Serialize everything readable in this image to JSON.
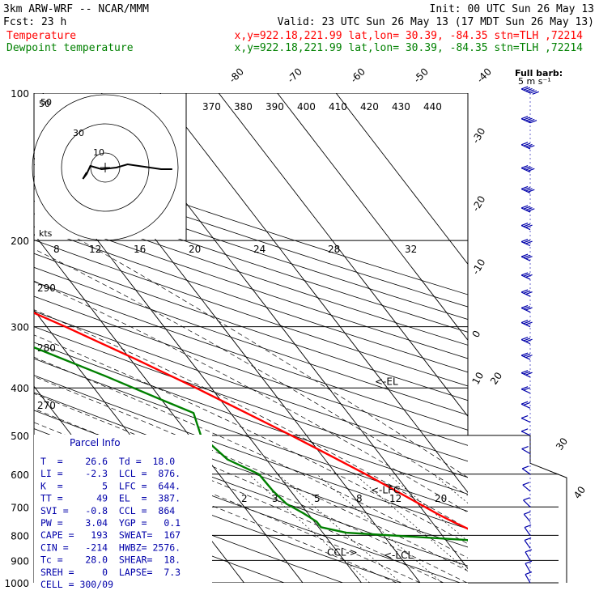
{
  "header": {
    "title": "3km ARW-WRF -- NCAR/MMM",
    "init": "Init: 00 UTC Sun 26 May 13",
    "fcst": "Fcst:    23 h",
    "valid": "Valid: 23 UTC Sun 26 May 13 (17 MDT Sun 26 May 13)",
    "temp_label": "Temperature",
    "dew_label": "Dewpoint temperature",
    "location": "x,y=922.18,221.99   lat,lon= 30.39, -84.35   stn=TLH ,72214"
  },
  "barb_key": {
    "title": "Full barb:",
    "value": "5 m s⁻¹"
  },
  "colors": {
    "temperature": "#ff0000",
    "dewpoint": "#008000",
    "isotherm": "#000000",
    "parcel_text": "#0000aa",
    "barbs": "#0000aa",
    "hodograph": "#000000"
  },
  "chart_data": {
    "type": "line",
    "diagram": "skew-T log-p",
    "y_axis": {
      "unit": "hPa",
      "scale": "log",
      "range": [
        1000,
        100
      ],
      "ticks": [
        100,
        200,
        300,
        400,
        500,
        600,
        700,
        800,
        900,
        1000
      ]
    },
    "isotherm_labels": [
      "-80",
      "-70",
      "-60",
      "-50",
      "-40",
      "-30",
      "-20",
      "-10",
      "0",
      "10",
      "20",
      "30",
      "40"
    ],
    "theta_labels": [
      "370",
      "380",
      "390",
      "400",
      "410",
      "420",
      "430",
      "440"
    ],
    "theta_left_labels": [
      "290",
      "280",
      "270"
    ],
    "mixing_ratio_labels": [
      "2",
      "3",
      "5",
      "8",
      "12",
      "20"
    ],
    "hodograph": {
      "unit_label": "kts",
      "ring_labels": [
        "10",
        "30",
        "50"
      ],
      "speed_labels": [
        "8",
        "12",
        "16",
        "20",
        "24",
        "28",
        "32"
      ],
      "trace_u_v": [
        [
          -5,
          -2
        ],
        [
          -6,
          2
        ],
        [
          -5,
          -1
        ],
        [
          -4,
          -6
        ],
        [
          -1,
          -4
        ],
        [
          3,
          -5
        ],
        [
          6,
          -7
        ],
        [
          9,
          -6
        ],
        [
          12,
          -5
        ],
        [
          15,
          -4
        ],
        [
          18,
          -4
        ]
      ]
    },
    "annotations": [
      "<-EL",
      "<-LFC",
      "<-LCL",
      "CCL->"
    ],
    "series": [
      {
        "name": "Temperature",
        "color": "#ff0000",
        "points": [
          [
            1000,
            26.6
          ],
          [
            975,
            24.5
          ],
          [
            950,
            22.3
          ],
          [
            925,
            20.5
          ],
          [
            900,
            19.2
          ],
          [
            875,
            18.6
          ],
          [
            850,
            17.0
          ],
          [
            825,
            16.4
          ],
          [
            800,
            16.2
          ],
          [
            775,
            15.2
          ],
          [
            750,
            13.6
          ],
          [
            725,
            12.1
          ],
          [
            700,
            10.8
          ],
          [
            650,
            8.0
          ],
          [
            600,
            5.0
          ],
          [
            550,
            1.4
          ],
          [
            500,
            -2.6
          ],
          [
            450,
            -7.3
          ],
          [
            400,
            -12.6
          ],
          [
            350,
            -19.0
          ],
          [
            300,
            -26.8
          ],
          [
            250,
            -36.7
          ],
          [
            200,
            -49.0
          ],
          [
            175,
            -55.8
          ],
          [
            150,
            -62.6
          ],
          [
            130,
            -63.8
          ],
          [
            115,
            -65.4
          ],
          [
            100,
            -67.0
          ]
        ]
      },
      {
        "name": "Dewpoint temperature",
        "color": "#008000",
        "points": [
          [
            1000,
            18.0
          ],
          [
            950,
            18.5
          ],
          [
            900,
            16.8
          ],
          [
            850,
            15.9
          ],
          [
            820,
            15.4
          ],
          [
            790,
            -6.0
          ],
          [
            770,
            -9.6
          ],
          [
            750,
            -9.6
          ],
          [
            720,
            -10.8
          ],
          [
            690,
            -12.4
          ],
          [
            650,
            -13.0
          ],
          [
            600,
            -13.2
          ],
          [
            560,
            -16.6
          ],
          [
            500,
            -18.0
          ],
          [
            450,
            -16.3
          ],
          [
            420,
            -20.4
          ],
          [
            380,
            -26.2
          ],
          [
            330,
            -35.0
          ],
          [
            300,
            -40.2
          ],
          [
            250,
            -49.6
          ],
          [
            200,
            -58.6
          ],
          [
            175,
            -65.0
          ],
          [
            150,
            -68.0
          ],
          [
            125,
            -76.0
          ],
          [
            110,
            -77.5
          ],
          [
            100,
            -80.0
          ]
        ]
      }
    ],
    "wind_barbs": {
      "unit": "m s-1",
      "levels": [
        {
          "p": 100,
          "spd": 30,
          "dir": 245
        },
        {
          "p": 115,
          "spd": 25,
          "dir": 245
        },
        {
          "p": 130,
          "spd": 20,
          "dir": 245
        },
        {
          "p": 145,
          "spd": 20,
          "dir": 245
        },
        {
          "p": 160,
          "spd": 20,
          "dir": 245
        },
        {
          "p": 175,
          "spd": 20,
          "dir": 245
        },
        {
          "p": 190,
          "spd": 15,
          "dir": 245
        },
        {
          "p": 205,
          "spd": 15,
          "dir": 245
        },
        {
          "p": 220,
          "spd": 15,
          "dir": 245
        },
        {
          "p": 240,
          "spd": 15,
          "dir": 245
        },
        {
          "p": 260,
          "spd": 15,
          "dir": 245
        },
        {
          "p": 280,
          "spd": 15,
          "dir": 245
        },
        {
          "p": 300,
          "spd": 15,
          "dir": 245
        },
        {
          "p": 325,
          "spd": 15,
          "dir": 245
        },
        {
          "p": 350,
          "spd": 15,
          "dir": 245
        },
        {
          "p": 380,
          "spd": 15,
          "dir": 245
        },
        {
          "p": 410,
          "spd": 10,
          "dir": 245
        },
        {
          "p": 440,
          "spd": 10,
          "dir": 245
        },
        {
          "p": 470,
          "spd": 5,
          "dir": 245
        },
        {
          "p": 500,
          "spd": 5,
          "dir": 245
        },
        {
          "p": 545,
          "spd": 5,
          "dir": 240
        },
        {
          "p": 600,
          "spd": 5,
          "dir": 235
        },
        {
          "p": 650,
          "spd": 5,
          "dir": 230
        },
        {
          "p": 700,
          "spd": 5,
          "dir": 225
        },
        {
          "p": 750,
          "spd": 5,
          "dir": 220
        },
        {
          "p": 800,
          "spd": 5,
          "dir": 215
        },
        {
          "p": 850,
          "spd": 5,
          "dir": 215
        },
        {
          "p": 900,
          "spd": 5,
          "dir": 210
        },
        {
          "p": 950,
          "spd": 5,
          "dir": 210
        },
        {
          "p": 1000,
          "spd": 5,
          "dir": 210
        }
      ]
    }
  },
  "parcel_info": {
    "title": "Parcel Info",
    "rows": [
      "T  =    26.6  Td =  18.0",
      "LI =    -2.3  LCL =  876.",
      "K  =       5  LFC =  644.",
      "TT =      49  EL  =  387.",
      "SVI =   -0.8  CCL =  864",
      "PW =    3.04  YGP =   0.1",
      "CAPE =   193  SWEAT=  167",
      "CIN =   -214  HWBZ= 2576.",
      "Tc =    28.0  SHEAR=  18.",
      "SREH =     0  LAPSE=  7.3",
      "CELL = 300/09"
    ]
  }
}
